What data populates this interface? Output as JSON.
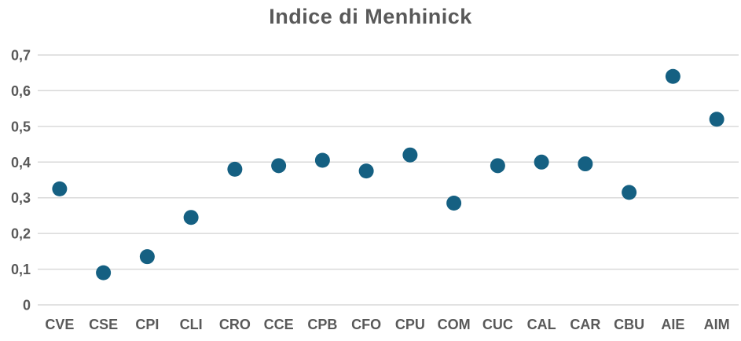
{
  "chart_data": {
    "type": "scatter",
    "title": "Indice di Menhinick",
    "categories": [
      "CVE",
      "CSE",
      "CPI",
      "CLI",
      "CRO",
      "CCE",
      "CPB",
      "CFO",
      "CPU",
      "COM",
      "CUC",
      "CAL",
      "CAR",
      "CBU",
      "AIE",
      "AIM"
    ],
    "values": [
      0.325,
      0.09,
      0.135,
      0.245,
      0.38,
      0.39,
      0.405,
      0.375,
      0.42,
      0.285,
      0.39,
      0.4,
      0.395,
      0.315,
      0.64,
      0.52
    ],
    "xlabel": "",
    "ylabel": "",
    "ylim": [
      0,
      0.7
    ],
    "yticks": {
      "values": [
        0,
        0.1,
        0.2,
        0.3,
        0.4,
        0.5,
        0.6,
        0.7
      ],
      "labels": [
        "0",
        "0,1",
        "0,2",
        "0,3",
        "0,4",
        "0,5",
        "0,6",
        "0,7"
      ]
    },
    "grid": true,
    "legend": false,
    "marker_color": "#156082",
    "text_color": "#595959",
    "gridline_color": "#D9D9D9"
  }
}
